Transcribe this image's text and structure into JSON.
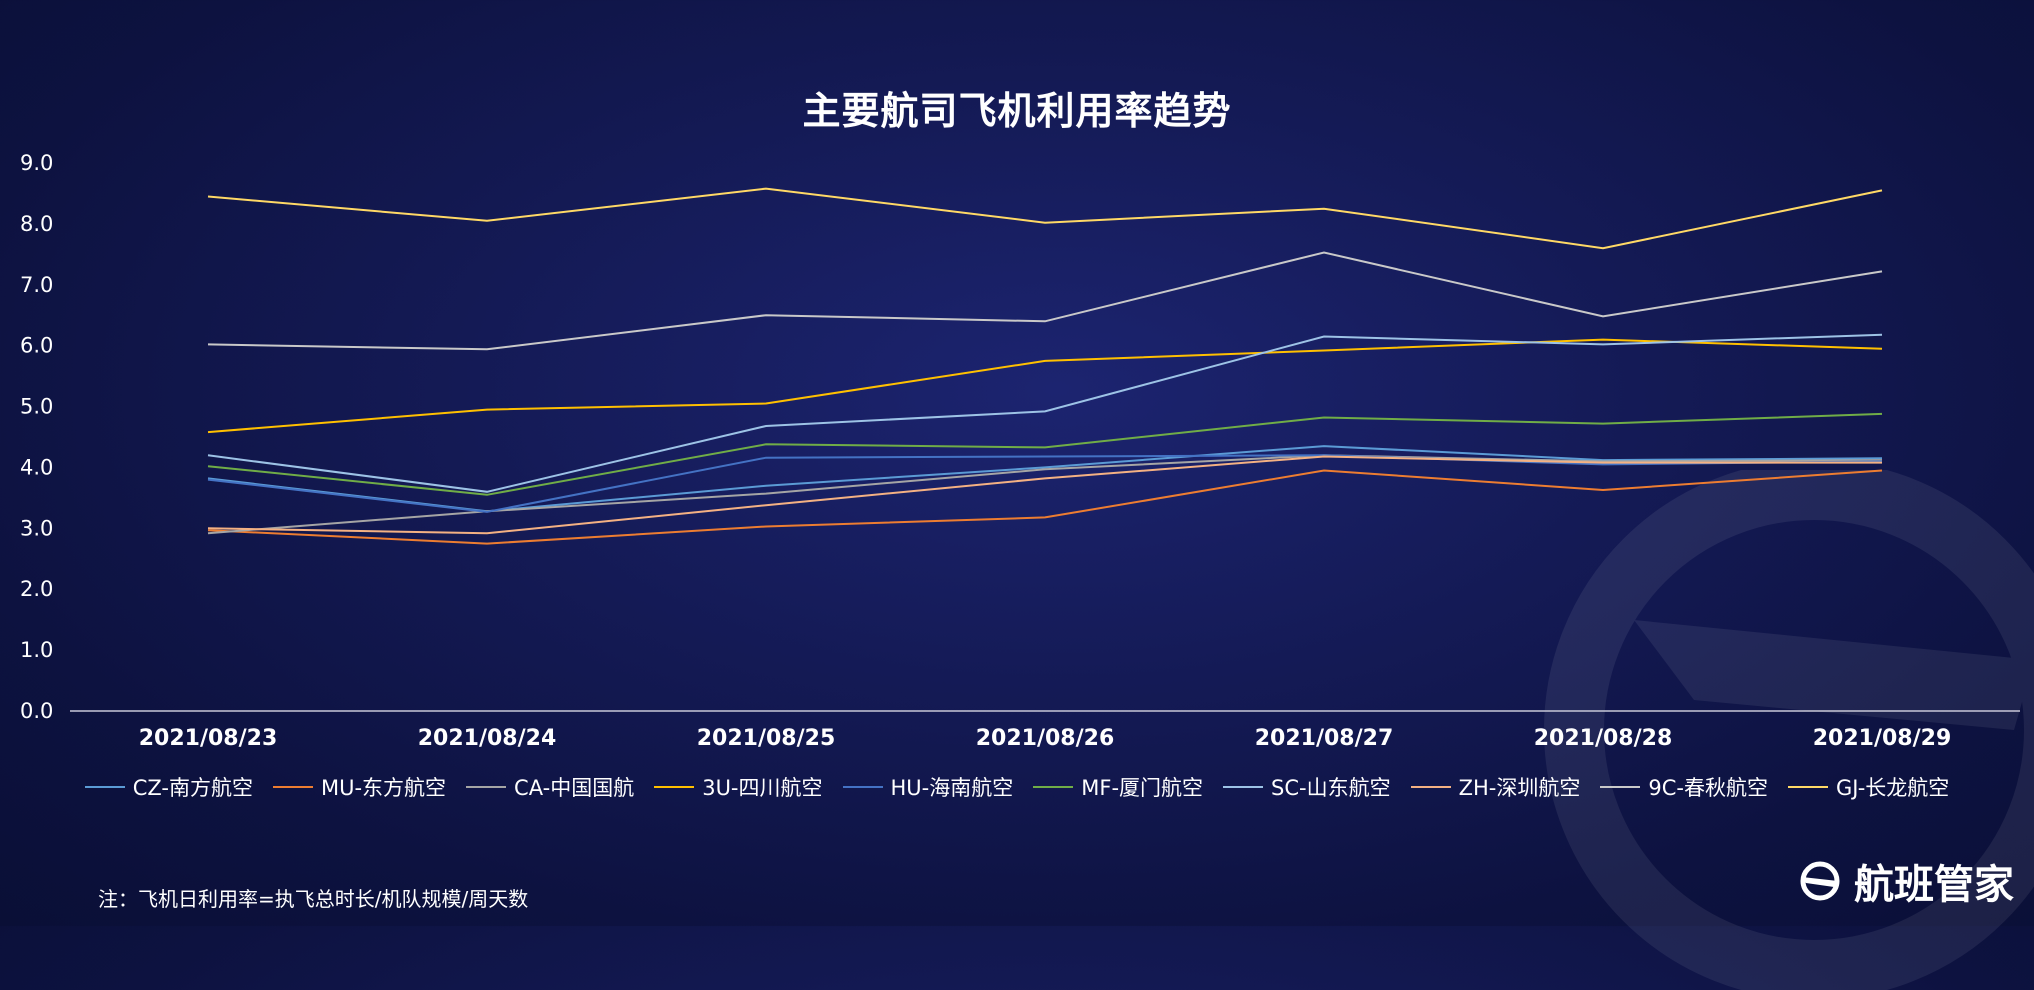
{
  "chart_data": {
    "type": "line",
    "title": "主要航司飞机利用率趋势",
    "xlabel": "",
    "ylabel": "",
    "ylim": [
      0,
      9
    ],
    "yticks": [
      "0.0",
      "1.0",
      "2.0",
      "3.0",
      "4.0",
      "5.0",
      "6.0",
      "7.0",
      "8.0",
      "9.0"
    ],
    "categories": [
      "2021/08/23",
      "2021/08/24",
      "2021/08/25",
      "2021/08/26",
      "2021/08/27",
      "2021/08/28",
      "2021/08/29"
    ],
    "legend_position": "bottom",
    "grid": false,
    "series": [
      {
        "name": "CZ-南方航空",
        "color": "#5b9bd5",
        "values": [
          3.82,
          3.28,
          3.7,
          4.0,
          4.35,
          4.12,
          4.15
        ]
      },
      {
        "name": "MU-东方航空",
        "color": "#ed7d31",
        "values": [
          2.97,
          2.75,
          3.03,
          3.18,
          3.95,
          3.63,
          3.95
        ]
      },
      {
        "name": "CA-中国国航",
        "color": "#a5a5a5",
        "values": [
          2.92,
          3.28,
          3.57,
          3.97,
          4.2,
          4.1,
          4.12
        ]
      },
      {
        "name": "3U-四川航空",
        "color": "#ffc000",
        "values": [
          4.58,
          4.95,
          5.05,
          5.75,
          5.92,
          6.1,
          5.95
        ]
      },
      {
        "name": "HU-海南航空",
        "color": "#4472c4",
        "values": [
          3.8,
          3.27,
          4.16,
          4.18,
          4.2,
          4.05,
          4.1
        ]
      },
      {
        "name": "MF-厦门航空",
        "color": "#70ad47",
        "values": [
          4.02,
          3.55,
          4.38,
          4.33,
          4.82,
          4.72,
          4.88
        ]
      },
      {
        "name": "SC-山东航空",
        "color": "#9dc3e6",
        "values": [
          4.2,
          3.6,
          4.68,
          4.92,
          6.15,
          6.02,
          6.18
        ]
      },
      {
        "name": "ZH-深圳航空",
        "color": "#f4b183",
        "values": [
          3.0,
          2.92,
          3.38,
          3.82,
          4.18,
          4.08,
          4.08
        ]
      },
      {
        "name": "9C-春秋航空",
        "color": "#c9c9c9",
        "values": [
          6.02,
          5.94,
          6.5,
          6.4,
          7.53,
          6.48,
          7.22
        ]
      },
      {
        "name": "GJ-长龙航空",
        "color": "#ffd966",
        "values": [
          8.45,
          8.05,
          8.58,
          8.02,
          8.25,
          7.6,
          8.55
        ]
      }
    ]
  },
  "footer": {
    "note": "注：飞机日利用率=执飞总时长/机队规模/周天数",
    "brand": "航班管家"
  }
}
